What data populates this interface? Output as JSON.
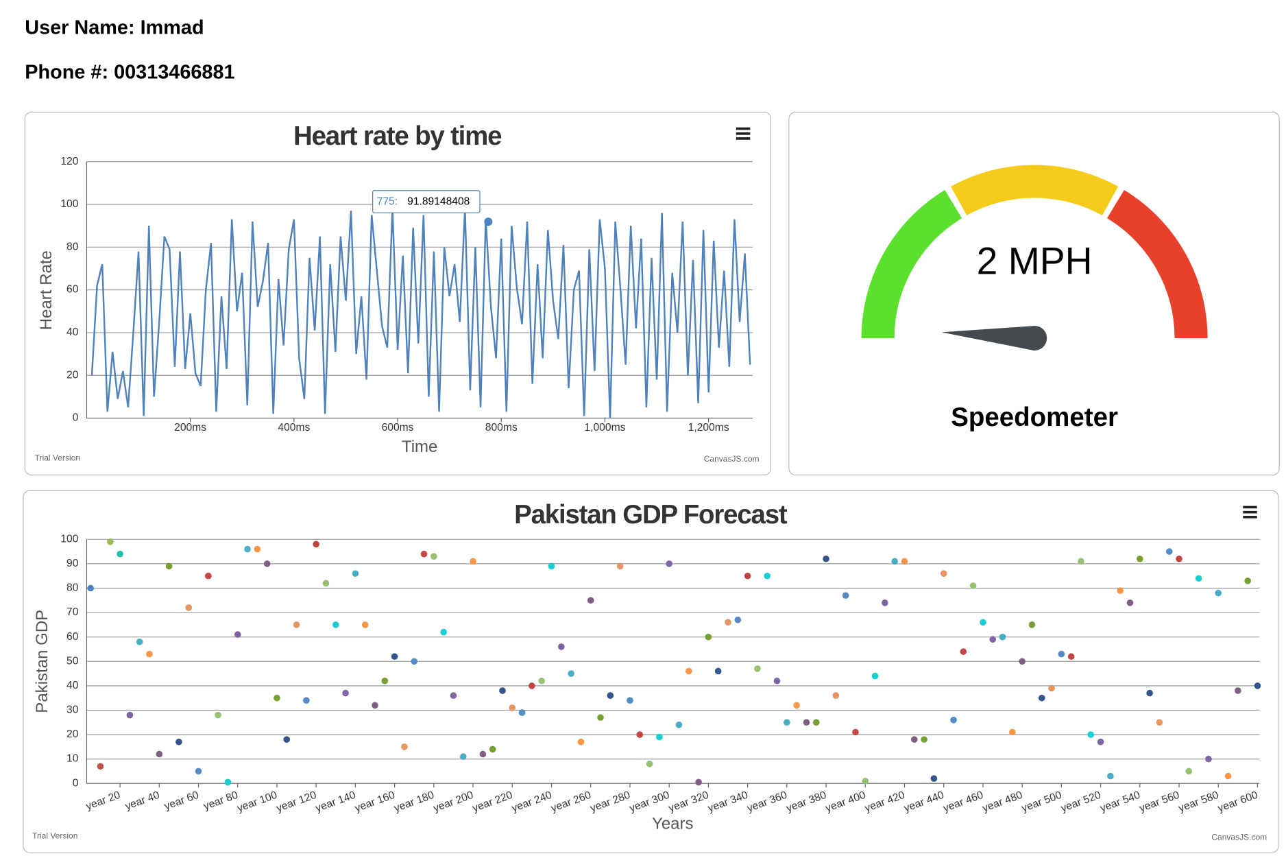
{
  "header": {
    "user_name": "User Name: Immad",
    "phone": "Phone #: 00313466881"
  },
  "chart_data": [
    {
      "type": "line",
      "title": "Heart rate by time",
      "x_label": "Time",
      "y_label": "Heart Rate",
      "color": "#4f81bc",
      "watermark": "Trial Version",
      "credit": "CanvasJS.com",
      "xlim": [
        0,
        1285
      ],
      "ylim": [
        0,
        120
      ],
      "yticks": [
        0,
        20,
        40,
        60,
        80,
        100,
        120
      ],
      "grid": true,
      "xticks": [
        {
          "value": 200,
          "label": "200ms"
        },
        {
          "value": 400,
          "label": "400ms"
        },
        {
          "value": 600,
          "label": "600ms"
        },
        {
          "value": 800,
          "label": "800ms"
        },
        {
          "value": 1000,
          "label": "1,000ms"
        },
        {
          "value": 1200,
          "label": "1,200ms"
        }
      ],
      "x": [
        10,
        20,
        30,
        40,
        50,
        60,
        70,
        80,
        90,
        100,
        110,
        120,
        130,
        140,
        150,
        160,
        170,
        180,
        190,
        200,
        210,
        220,
        230,
        240,
        250,
        260,
        270,
        280,
        290,
        300,
        310,
        320,
        330,
        340,
        350,
        360,
        370,
        380,
        390,
        400,
        410,
        420,
        430,
        440,
        450,
        460,
        470,
        480,
        490,
        500,
        510,
        520,
        530,
        540,
        550,
        560,
        570,
        580,
        590,
        600,
        610,
        620,
        630,
        640,
        650,
        660,
        670,
        680,
        690,
        700,
        710,
        720,
        730,
        740,
        750,
        760,
        770,
        780,
        790,
        800,
        810,
        820,
        830,
        840,
        850,
        860,
        870,
        880,
        890,
        900,
        910,
        920,
        930,
        940,
        950,
        960,
        970,
        980,
        990,
        1000,
        1010,
        1020,
        1030,
        1040,
        1050,
        1060,
        1070,
        1080,
        1090,
        1100,
        1110,
        1120,
        1130,
        1140,
        1150,
        1160,
        1170,
        1180,
        1190,
        1200,
        1210,
        1220,
        1230,
        1240,
        1250,
        1260,
        1270,
        1280
      ],
      "values": [
        20,
        62,
        72,
        3,
        31,
        9,
        22,
        5,
        40,
        78,
        1,
        90,
        10,
        45,
        85,
        79,
        24,
        78,
        23,
        49,
        21,
        15,
        60,
        82,
        3,
        57,
        23,
        93,
        50,
        68,
        6,
        92,
        52,
        64,
        82,
        2,
        65,
        34,
        79,
        93,
        28,
        9,
        75,
        41,
        85,
        2,
        72,
        31,
        85,
        55,
        97,
        30,
        57,
        18,
        95,
        69,
        43,
        33,
        98,
        32,
        76,
        21,
        89,
        35,
        95,
        10,
        78,
        3,
        80,
        57,
        72,
        45,
        98,
        13,
        80,
        5,
        93,
        52,
        28,
        84,
        3,
        90,
        61,
        44,
        92,
        16,
        72,
        28,
        88,
        55,
        37,
        81,
        14,
        60,
        69,
        1,
        79,
        22,
        93,
        70,
        0,
        92,
        60,
        25,
        90,
        42,
        84,
        5,
        75,
        18,
        96,
        3,
        68,
        40,
        92,
        20,
        74,
        7,
        88,
        12,
        83,
        33,
        69,
        24,
        93,
        45,
        77,
        25
      ],
      "tooltip": {
        "x": 775,
        "x_label": "775:",
        "value": 91.89148408
      }
    },
    {
      "type": "gauge",
      "title": "Speedometer",
      "value": 2,
      "value_label": "2 MPH",
      "range": [
        0,
        100
      ],
      "needle_color": "#454a4f",
      "bands": [
        {
          "to": 33.3,
          "color": "#5ce02e"
        },
        {
          "to": 66.7,
          "color": "#f4cb18"
        },
        {
          "to": 100,
          "color": "#e8412b"
        }
      ]
    },
    {
      "type": "scatter",
      "title": "Pakistan GDP Forecast",
      "x_label": "Years",
      "y_label": "Pakistan GDP",
      "watermark": "Trial Version",
      "credit": "CanvasJS.com",
      "xlim": [
        3,
        601
      ],
      "ylim": [
        0,
        100
      ],
      "yticks": [
        0,
        10,
        20,
        30,
        40,
        50,
        60,
        70,
        80,
        90,
        100
      ],
      "grid": true,
      "xticks": [
        {
          "value": 20,
          "label": "year 20"
        },
        {
          "value": 40,
          "label": "year 40"
        },
        {
          "value": 60,
          "label": "year 60"
        },
        {
          "value": 80,
          "label": "year 80"
        },
        {
          "value": 100,
          "label": "year 100"
        },
        {
          "value": 120,
          "label": "year 120"
        },
        {
          "value": 140,
          "label": "year 140"
        },
        {
          "value": 160,
          "label": "year 160"
        },
        {
          "value": 180,
          "label": "year 180"
        },
        {
          "value": 200,
          "label": "year 200"
        },
        {
          "value": 220,
          "label": "year 220"
        },
        {
          "value": 240,
          "label": "year 240"
        },
        {
          "value": 260,
          "label": "year 260"
        },
        {
          "value": 280,
          "label": "year 280"
        },
        {
          "value": 300,
          "label": "year 300"
        },
        {
          "value": 320,
          "label": "year 320"
        },
        {
          "value": 340,
          "label": "year 340"
        },
        {
          "value": 360,
          "label": "year 360"
        },
        {
          "value": 380,
          "label": "year 380"
        },
        {
          "value": 400,
          "label": "year 400"
        },
        {
          "value": 420,
          "label": "year 420"
        },
        {
          "value": 440,
          "label": "year 440"
        },
        {
          "value": 460,
          "label": "year 460"
        },
        {
          "value": 480,
          "label": "year 480"
        },
        {
          "value": 500,
          "label": "year 500"
        },
        {
          "value": 520,
          "label": "year 520"
        },
        {
          "value": 540,
          "label": "year 540"
        },
        {
          "value": 560,
          "label": "year 560"
        },
        {
          "value": 580,
          "label": "year 580"
        },
        {
          "value": 600,
          "label": "year 600"
        }
      ],
      "x": [
        5,
        10,
        15,
        20,
        25,
        30,
        35,
        40,
        45,
        50,
        55,
        60,
        65,
        70,
        75,
        80,
        85,
        90,
        95,
        100,
        105,
        110,
        115,
        120,
        125,
        130,
        135,
        140,
        145,
        150,
        155,
        160,
        165,
        170,
        175,
        180,
        185,
        190,
        195,
        200,
        205,
        210,
        215,
        220,
        225,
        230,
        235,
        240,
        245,
        250,
        255,
        260,
        265,
        270,
        275,
        280,
        285,
        290,
        295,
        300,
        305,
        310,
        315,
        320,
        325,
        330,
        335,
        340,
        345,
        350,
        355,
        360,
        365,
        370,
        375,
        380,
        385,
        390,
        395,
        400,
        405,
        410,
        415,
        420,
        425,
        430,
        435,
        440,
        445,
        450,
        455,
        460,
        465,
        470,
        475,
        480,
        485,
        490,
        495,
        500,
        505,
        510,
        515,
        520,
        525,
        530,
        535,
        540,
        545,
        550,
        555,
        560,
        565,
        570,
        575,
        580,
        585,
        590,
        595,
        600
      ],
      "values": [
        80,
        7,
        99,
        94,
        28,
        58,
        53,
        12,
        89,
        17,
        72,
        5,
        85,
        28,
        0.5,
        61,
        96,
        96,
        90,
        35,
        18,
        65,
        34,
        98,
        82,
        65,
        37,
        86,
        65,
        32,
        42,
        52,
        15,
        50,
        94,
        93,
        62,
        36,
        11,
        91,
        12,
        14,
        38,
        31,
        29,
        40,
        42,
        89,
        56,
        45,
        17,
        75,
        27,
        36,
        89,
        34,
        20,
        8,
        19,
        90,
        24,
        46,
        0.5,
        60,
        46,
        66,
        67,
        85,
        47,
        85,
        42,
        25,
        32,
        25,
        25,
        92,
        36,
        77,
        21,
        1,
        44,
        74,
        91,
        91,
        18,
        18,
        2,
        86,
        26,
        54,
        81,
        66,
        59,
        60,
        21,
        50,
        65,
        35,
        39,
        53,
        52,
        91,
        20,
        17,
        3,
        79,
        74,
        92,
        37,
        25,
        95,
        92,
        5,
        84,
        10,
        78,
        3,
        38,
        83,
        40
      ],
      "colors": [
        "#4F81BC",
        "#C0504E",
        "#9BBB58",
        "#23BFAA",
        "#8064A1",
        "#4AACC5",
        "#F79647",
        "#7F6084",
        "#77A033",
        "#33558B",
        "#E59566",
        "#558BC4",
        "#C24642",
        "#98C072",
        "#1BCDD1",
        "#8064A1",
        "#4AACC5",
        "#F79647",
        "#7F6084",
        "#77A033",
        "#33558B",
        "#E59566",
        "#558BC4",
        "#C24642",
        "#98C072",
        "#1BCDD1",
        "#8064A1",
        "#4AACC5",
        "#F79647",
        "#7F6084",
        "#77A033",
        "#33558B",
        "#E59566",
        "#558BC4",
        "#C24642",
        "#98C072",
        "#1BCDD1",
        "#8064A1",
        "#4AACC5",
        "#F79647",
        "#7F6084",
        "#77A033",
        "#33558B",
        "#E59566",
        "#558BC4",
        "#C24642",
        "#98C072",
        "#1BCDD1",
        "#8064A1",
        "#4AACC5",
        "#F79647",
        "#7F6084",
        "#77A033",
        "#33558B",
        "#E59566",
        "#558BC4",
        "#C24642",
        "#98C072",
        "#1BCDD1",
        "#8064A1",
        "#4AACC5",
        "#F79647",
        "#7F6084",
        "#77A033",
        "#33558B",
        "#E59566",
        "#558BC4",
        "#C24642",
        "#98C072",
        "#1BCDD1",
        "#8064A1",
        "#4AACC5",
        "#F79647",
        "#7F6084",
        "#77A033",
        "#33558B",
        "#E59566",
        "#558BC4",
        "#C24642",
        "#98C072",
        "#1BCDD1",
        "#8064A1",
        "#4AACC5",
        "#F79647",
        "#7F6084",
        "#77A033",
        "#33558B",
        "#E59566",
        "#558BC4",
        "#C24642",
        "#98C072",
        "#1BCDD1",
        "#8064A1",
        "#4AACC5",
        "#F79647",
        "#7F6084",
        "#77A033",
        "#33558B",
        "#E59566",
        "#558BC4",
        "#C24642",
        "#98C072",
        "#1BCDD1",
        "#8064A1",
        "#4AACC5",
        "#F79647",
        "#7F6084",
        "#77A033",
        "#33558B",
        "#E59566",
        "#558BC4",
        "#C24642",
        "#98C072",
        "#1BCDD1",
        "#8064A1",
        "#4AACC5",
        "#F79647",
        "#7F6084",
        "#77A033",
        "#33558B"
      ]
    }
  ]
}
